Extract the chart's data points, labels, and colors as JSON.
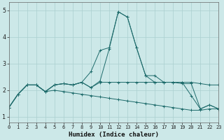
{
  "xlabel": "Humidex (Indice chaleur)",
  "xlim": [
    0,
    23
  ],
  "ylim": [
    0.8,
    5.3
  ],
  "xticks": [
    0,
    1,
    2,
    3,
    4,
    5,
    6,
    7,
    8,
    9,
    10,
    11,
    12,
    13,
    14,
    15,
    16,
    17,
    18,
    19,
    20,
    21,
    22,
    23
  ],
  "yticks": [
    1,
    2,
    3,
    4,
    5
  ],
  "bg_color": "#cce8e8",
  "grid_color": "#aacfcf",
  "line_color": "#1e6b6b",
  "series": [
    [
      1.35,
      1.85,
      2.2,
      2.2,
      1.95,
      2.2,
      2.25,
      2.2,
      2.3,
      2.7,
      3.5,
      3.6,
      4.95,
      4.75,
      3.6,
      2.55,
      2.55,
      2.3,
      2.3,
      2.25,
      2.25,
      1.3,
      1.45,
      1.3
    ],
    [
      1.35,
      1.85,
      2.2,
      2.2,
      1.95,
      2.2,
      2.25,
      2.2,
      2.3,
      2.1,
      2.35,
      3.55,
      4.95,
      4.75,
      3.6,
      2.55,
      2.3,
      2.3,
      2.3,
      2.3,
      1.8,
      1.3,
      1.45,
      1.3
    ],
    [
      1.35,
      1.85,
      2.2,
      2.2,
      1.95,
      2.2,
      2.25,
      2.2,
      2.3,
      2.1,
      2.3,
      2.3,
      2.3,
      2.3,
      2.3,
      2.3,
      2.3,
      2.3,
      2.3,
      2.3,
      2.3,
      2.25,
      2.2,
      2.2
    ],
    [
      1.35,
      1.85,
      2.2,
      2.2,
      1.95,
      2.0,
      1.95,
      1.9,
      1.85,
      1.8,
      1.75,
      1.7,
      1.65,
      1.6,
      1.55,
      1.5,
      1.45,
      1.4,
      1.35,
      1.3,
      1.25,
      1.25,
      1.3,
      1.3
    ]
  ]
}
